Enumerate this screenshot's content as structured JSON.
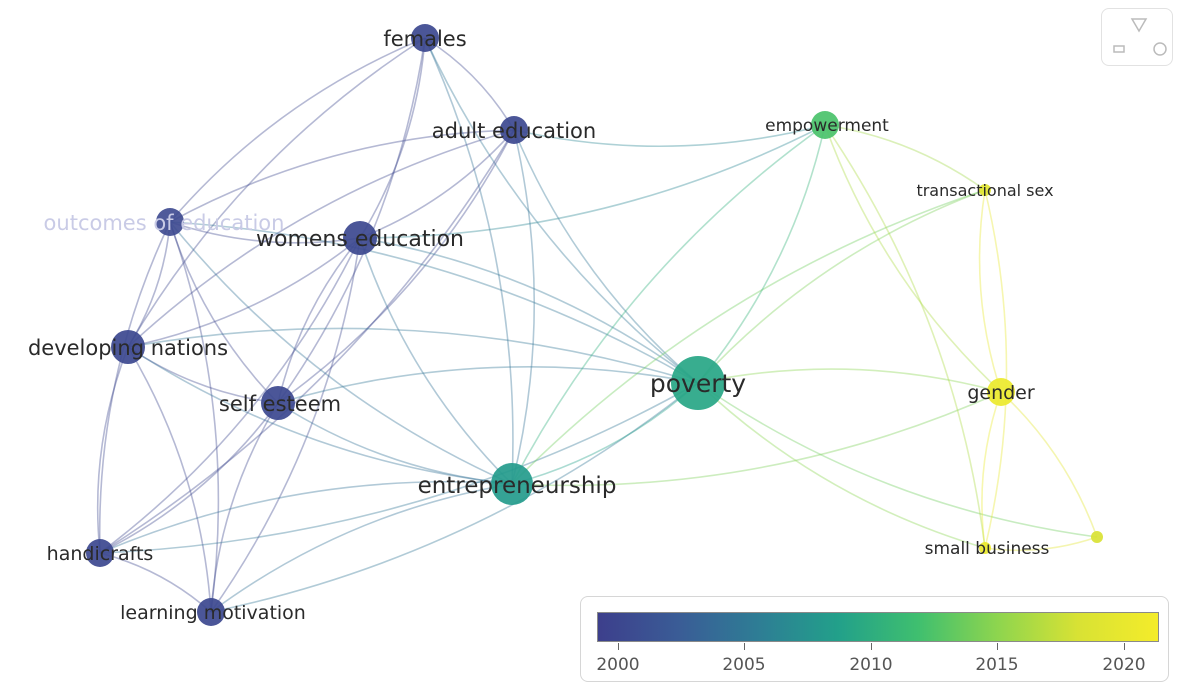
{
  "network": {
    "nodes": [
      {
        "id": "females",
        "label": "females",
        "year": 2000,
        "size": "s"
      },
      {
        "id": "adult_education",
        "label": "adult education",
        "year": 2000,
        "size": "s"
      },
      {
        "id": "outcomes_of_education",
        "label": "outcomes of education",
        "year": 2000,
        "size": "s",
        "faded": true
      },
      {
        "id": "womens_education",
        "label": "womens education",
        "year": 2000,
        "size": "m"
      },
      {
        "id": "developing_nations",
        "label": "developing nations",
        "year": 2000,
        "size": "m"
      },
      {
        "id": "self_esteem",
        "label": "self esteem",
        "year": 2000,
        "size": "m"
      },
      {
        "id": "handicrafts",
        "label": "handicrafts",
        "year": 2000,
        "size": "s"
      },
      {
        "id": "learning_motivation",
        "label": "learning motivation",
        "year": 2000,
        "size": "s"
      },
      {
        "id": "entrepreneurship",
        "label": "entrepreneurship",
        "year": 2008,
        "size": "l"
      },
      {
        "id": "poverty",
        "label": "poverty",
        "year": 2009,
        "size": "xl"
      },
      {
        "id": "empowerment",
        "label": "empowerment",
        "year": 2012,
        "size": "s"
      },
      {
        "id": "transactional_sex",
        "label": "transactional sex",
        "year": 2019,
        "size": "xs"
      },
      {
        "id": "gender",
        "label": "gender",
        "year": 2020,
        "size": "s"
      },
      {
        "id": "small_business",
        "label": "small business",
        "year": 2020,
        "size": "xs"
      },
      {
        "id": "unlabeled_node",
        "label": "",
        "year": 2018,
        "size": "xs"
      }
    ]
  },
  "legend": {
    "ticks": [
      "2000",
      "2005",
      "2010",
      "2015",
      "2020"
    ],
    "colors": [
      "#3d3f8c",
      "#3a5c96",
      "#2e7d95",
      "#22a08a",
      "#3fbf6f",
      "#8ed54e",
      "#d8e234",
      "#f4ec2a"
    ]
  },
  "controls": {
    "icons": [
      "filter-icon",
      "zoom-out-icon",
      "zoom-in-icon"
    ]
  }
}
